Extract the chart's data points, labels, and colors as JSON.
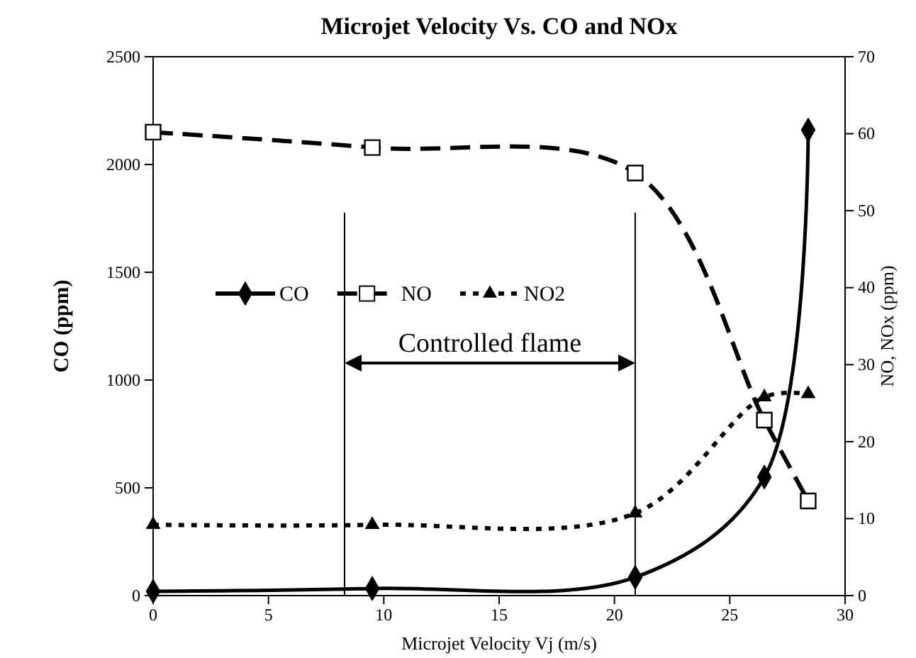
{
  "chart_data": {
    "type": "line",
    "title": "Microjet Velocity Vs. CO and NOx",
    "xlabel": "Microjet Velocity Vj (m/s)",
    "ylabel": "CO (ppm)",
    "y2label": "NO, NOx (ppm)",
    "x": [
      0,
      9.5,
      20.9,
      26.5,
      28.4
    ],
    "series": [
      {
        "name": "CO",
        "color": "#000000",
        "values": [
          20,
          33,
          85,
          550,
          2160
        ],
        "marker": "diamond",
        "line_style": "solid"
      },
      {
        "name": "NO",
        "color": "#000000",
        "values": [
          60.2,
          58.2,
          54.9,
          22.8,
          12.3
        ],
        "axis": "y2",
        "marker": "square",
        "line_style": "dashed"
      },
      {
        "name": "NO2",
        "color": "#000000",
        "values": [
          9.2,
          9.2,
          10.7,
          25.8,
          26.2
        ],
        "axis": "y2",
        "marker": "triangle",
        "line_style": "dotted"
      }
    ],
    "xlim": [
      0,
      30
    ],
    "xticks": [
      0,
      5,
      10,
      15,
      20,
      25,
      30
    ],
    "ylim": [
      0,
      2500
    ],
    "yticks": [
      0,
      500,
      1000,
      1500,
      2000,
      2500
    ],
    "y2lim": [
      0,
      70
    ],
    "y2ticks": [
      0,
      10,
      20,
      30,
      40,
      50,
      60,
      70
    ],
    "ref_lines": [
      {
        "axis": "x",
        "value": 8.3,
        "color": "#000000"
      },
      {
        "axis": "x",
        "value": 20.9,
        "color": "#000000"
      }
    ],
    "annotations": [
      "Controlled flame"
    ],
    "legend": "center left",
    "grid": false
  }
}
